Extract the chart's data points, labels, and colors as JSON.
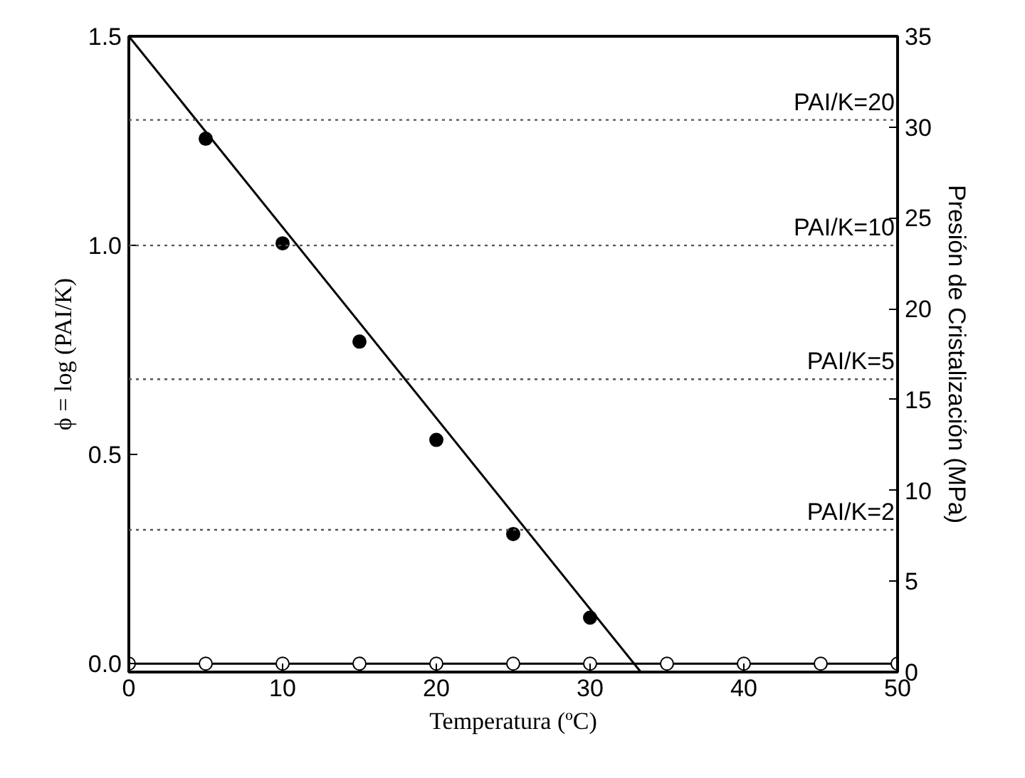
{
  "chart_data": {
    "type": "scatter",
    "xlabel": "Temperatura (ºC)",
    "ylabel": "ϕ = log (PAI/K)",
    "y2label": "Presión de Cristalización (MPa)",
    "xlim": [
      0,
      50
    ],
    "xticks": [
      0,
      10,
      20,
      30,
      40,
      50
    ],
    "ylim": [
      -0.02,
      1.5
    ],
    "yticks": [
      {
        "value": 0,
        "label": "0.0"
      },
      0.5,
      {
        "value": 1,
        "label": "1.0"
      },
      1.5
    ],
    "y2lim": [
      0,
      35
    ],
    "y2ticks": [
      0,
      5,
      10,
      15,
      20,
      25,
      30,
      35
    ],
    "grid": false,
    "marker": "circle",
    "series": [
      {
        "color": "#000000",
        "x": [
          5,
          10,
          15,
          20,
          25,
          30
        ],
        "values": [
          1.255,
          1.005,
          0.77,
          0.535,
          0.31,
          0.11
        ]
      },
      {
        "type": "line",
        "color": "#000000",
        "marker": "none",
        "line_style": "solid",
        "x": [
          0,
          33.3
        ],
        "values": [
          1.5,
          -0.02
        ]
      },
      {
        "type": "line",
        "color": "#000000",
        "marker": "circle",
        "line_style": "solid",
        "x": [
          0,
          5,
          10,
          15,
          20,
          25,
          30,
          35,
          40,
          45,
          50
        ],
        "values": [
          0,
          0,
          0,
          0,
          0,
          0,
          0,
          0,
          0,
          0,
          0
        ]
      }
    ],
    "ref_lines": [
      {
        "axis": "y",
        "value": 1.3,
        "color": "#555555",
        "line_style": "dotted"
      },
      {
        "axis": "y",
        "value": 1.0,
        "color": "#555555",
        "line_style": "dotted"
      },
      {
        "axis": "y",
        "value": 0.68,
        "color": "#555555",
        "line_style": "dotted"
      },
      {
        "axis": "y",
        "value": 0.32,
        "color": "#555555",
        "line_style": "dotted"
      }
    ],
    "annotations": [
      "PAI/K=20",
      "PAI/K=10",
      "PAI/K=5",
      "PAI/K=2"
    ]
  }
}
